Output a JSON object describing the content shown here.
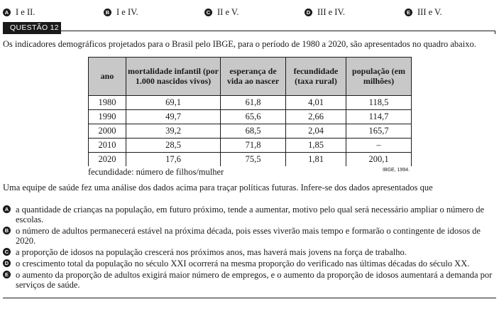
{
  "previous_options": [
    {
      "letter": "A",
      "text": "I e II."
    },
    {
      "letter": "B",
      "text": "I e IV."
    },
    {
      "letter": "C",
      "text": "II e V."
    },
    {
      "letter": "D",
      "text": "III e IV."
    },
    {
      "letter": "E",
      "text": "III e V."
    }
  ],
  "question": {
    "label": "QUESTÃO 12",
    "intro": "Os indicadores demográficos projetados para o Brasil pelo IBGE, para o período de 1980 a 2020, são apresentados no quadro abaixo.",
    "prompt": "Uma equipe de saúde fez uma análise dos dados acima para traçar políticas futuras. Infere-se dos dados apresentados que"
  },
  "table": {
    "headers": [
      "ano",
      "mortalidade infantil (por 1.000 nascidos vivos)",
      "esperança de vida ao nascer",
      "fecundidade (taxa rural)",
      "população (em milhões)"
    ],
    "rows": [
      [
        "1980",
        "69,1",
        "61,8",
        "4,01",
        "118,5"
      ],
      [
        "1990",
        "49,7",
        "65,6",
        "2,66",
        "114,7"
      ],
      [
        "2000",
        "39,2",
        "68,5",
        "2,04",
        "165,7"
      ],
      [
        "2010",
        "28,5",
        "71,8",
        "1,85",
        "–"
      ],
      [
        "2020",
        "17,6",
        "75,5",
        "1,81",
        "200,1"
      ]
    ],
    "note": "fecundidade: número de filhos/mulher",
    "source": "IBGE, 1994."
  },
  "answers": [
    {
      "letter": "A",
      "text": "a quantidade de crianças na população, em futuro próximo, tende a aumentar, motivo pelo qual será necessário ampliar o número de escolas."
    },
    {
      "letter": "B",
      "text": "o número de adultos permanecerá estável na próxima década, pois esses viverão mais tempo e formarão o contingente de idosos de 2020."
    },
    {
      "letter": "C",
      "text": "a proporção de idosos na população crescerá nos próximos anos, mas haverá mais jovens na força de trabalho."
    },
    {
      "letter": "D",
      "text": "o crescimento total da população no século XXI ocorrerá na mesma proporção do verificado nas últimas décadas do século XX."
    },
    {
      "letter": "E",
      "text": "o aumento da proporção de adultos exigirá maior número de empregos, e o aumento da proporção de idosos aumentará a demanda por serviços de saúde."
    }
  ]
}
